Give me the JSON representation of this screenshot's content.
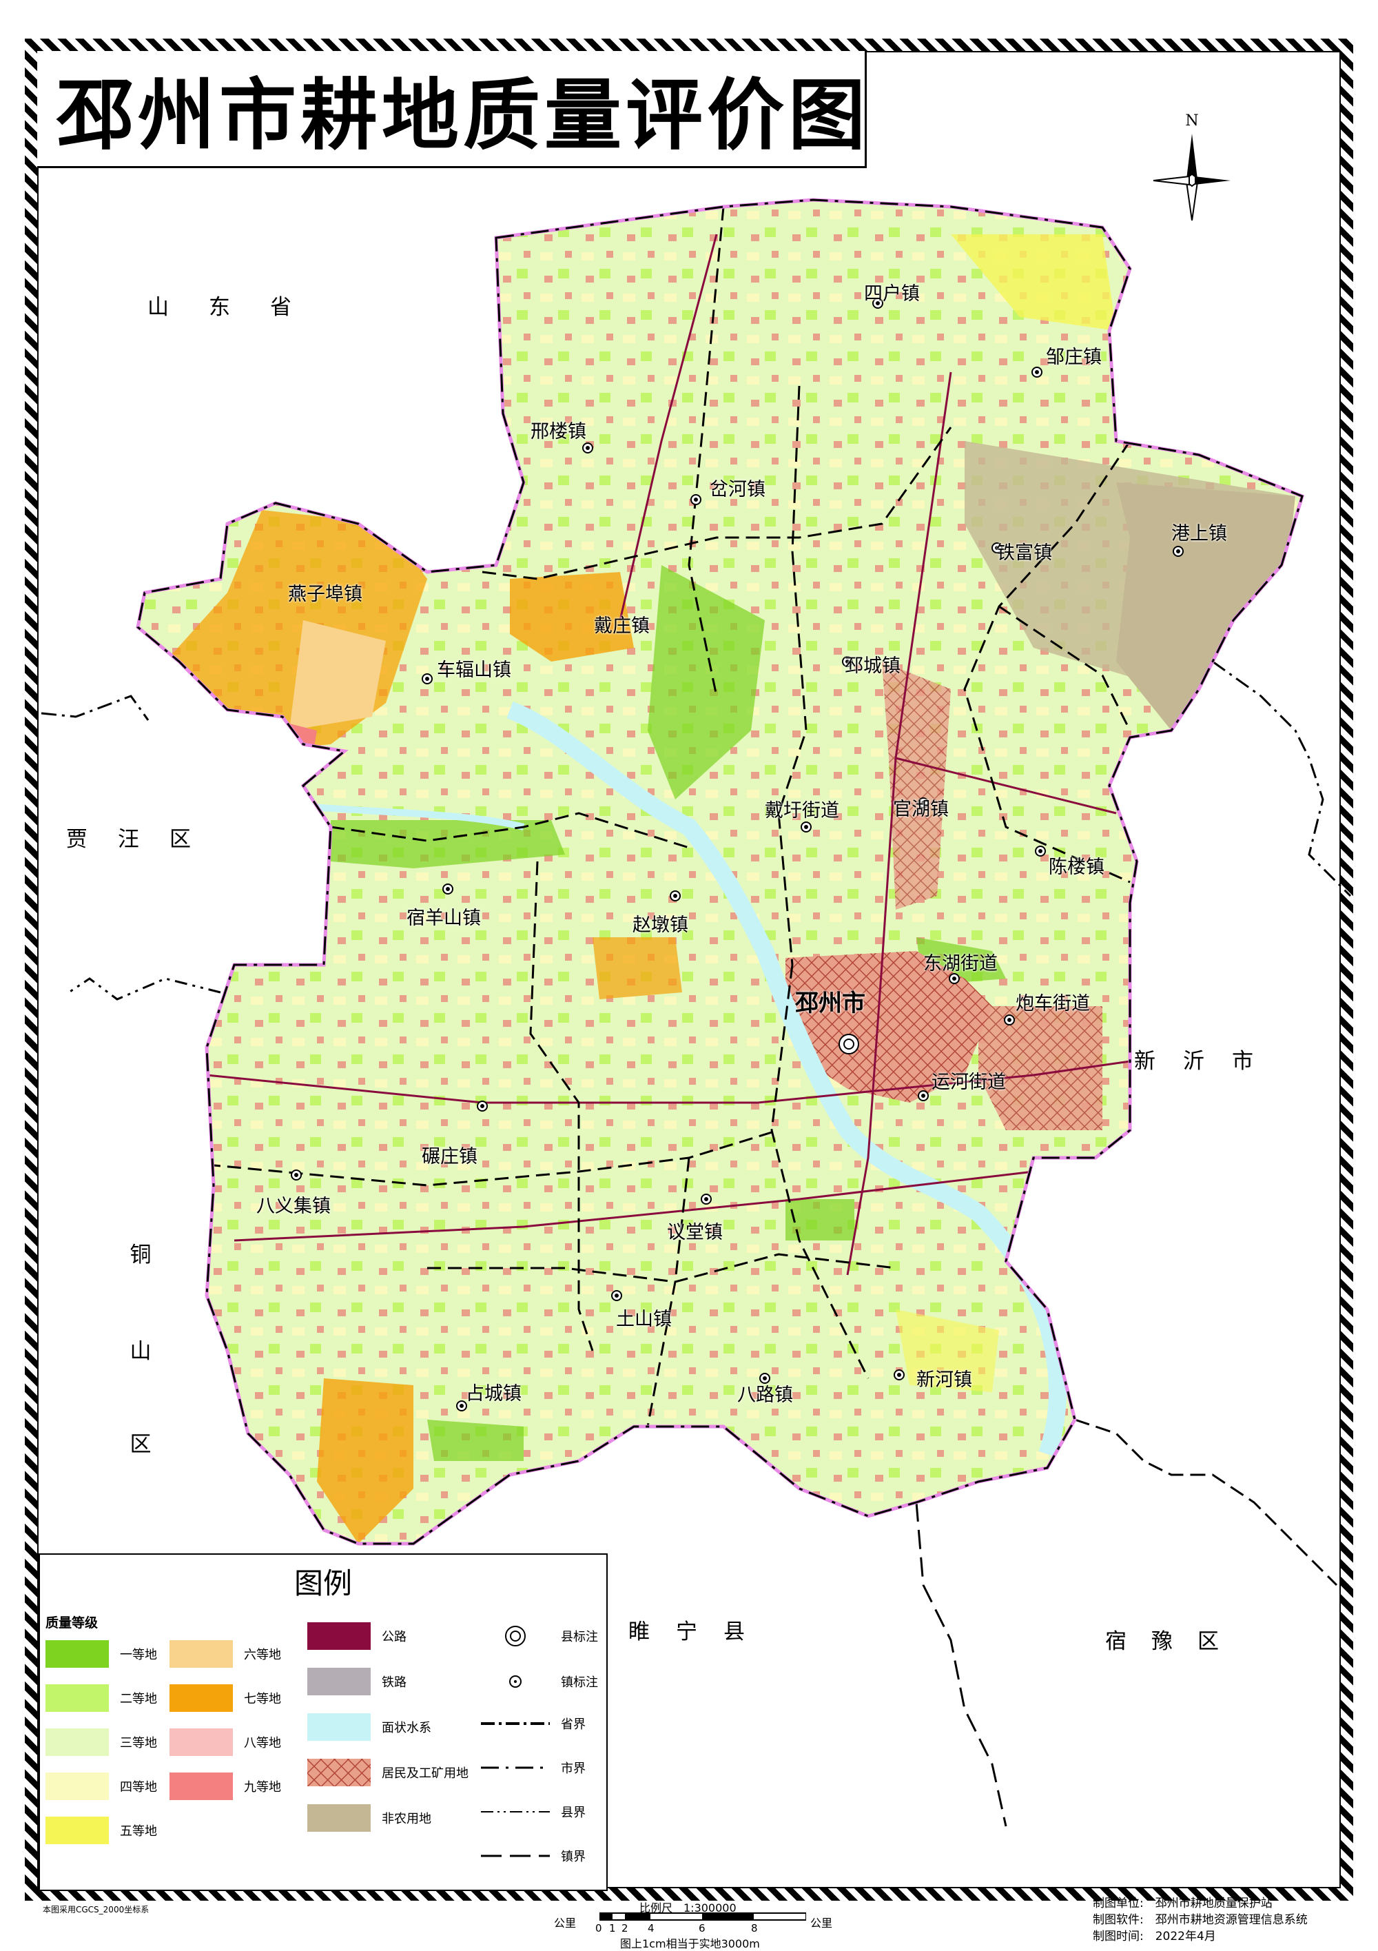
{
  "title": "邳州市耕地质量评价图",
  "north_label": "N",
  "regions": {
    "shandong": "山东省",
    "jiawang": "贾汪区",
    "tongshan": [
      "铜",
      "山",
      "区"
    ],
    "xinyi": "新沂市",
    "suining": "睢宁县",
    "suyu": "宿豫区"
  },
  "city_label": "邳州市",
  "towns": {
    "sihu": "四户镇",
    "zouzhuang": "邹庄镇",
    "xinglou": "邢楼镇",
    "chahe": "岔河镇",
    "gangshang": "港上镇",
    "tiefu": "铁富镇",
    "yanzibu": "燕子埠镇",
    "chefushan": "车辐山镇",
    "daizhuang": "戴庄镇",
    "pichengzhen": "邳城镇",
    "daiyu": "戴圩街道",
    "guanhu": "官湖镇",
    "chenlou": "陈楼镇",
    "suyangshan": "宿羊山镇",
    "zhaodun": "赵墩镇",
    "donghu": "东湖街道",
    "paoche": "炮车街道",
    "yunhe": "运河街道",
    "nianzhuang": "碾庄镇",
    "bayiji": "八义集镇",
    "yitang": "议堂镇",
    "tushan": "土山镇",
    "zhancheng": "占城镇",
    "balu": "八路镇",
    "xinhe": "新河镇"
  },
  "legend": {
    "title": "图例",
    "grade_heading": "质量等级",
    "grades": [
      {
        "label": "一等地",
        "color": "#7ed321"
      },
      {
        "label": "二等地",
        "color": "#c3f56b"
      },
      {
        "label": "三等地",
        "color": "#e5f9bf"
      },
      {
        "label": "四等地",
        "color": "#fafabf"
      },
      {
        "label": "五等地",
        "color": "#f5f556"
      },
      {
        "label": "六等地",
        "color": "#f9d38c"
      },
      {
        "label": "七等地",
        "color": "#f5a30a"
      },
      {
        "label": "八等地",
        "color": "#f9bebe"
      },
      {
        "label": "九等地",
        "color": "#f58080"
      }
    ],
    "landuse": [
      {
        "label": "公路",
        "color": "#8a0c3e"
      },
      {
        "label": "铁路",
        "color": "#b4aeb4"
      },
      {
        "label": "面状水系",
        "color": "#c6f3f6"
      },
      {
        "label": "居民及工矿用地",
        "color": "#e8a08a"
      },
      {
        "label": "非农用地",
        "color": "#c4b894"
      }
    ],
    "symbols": [
      {
        "label": "县标注"
      },
      {
        "label": "镇标注"
      },
      {
        "label": "省界"
      },
      {
        "label": "市界"
      },
      {
        "label": "县界"
      },
      {
        "label": "镇界"
      }
    ]
  },
  "scale": {
    "title": "比例尺　1:300000",
    "unit_left": "公里",
    "unit_right": "公里",
    "ticks": [
      "0",
      "1",
      "2",
      "4",
      "6",
      "8"
    ],
    "note": "图上1cm相当于实地3000m"
  },
  "coord_note": "本图采用CGCS_2000坐标系",
  "credits": {
    "org": "制图单位:　邳州市耕地质量保护站",
    "software": "制图软件:　邳州市耕地资源管理信息系统",
    "date": "制图时间:　2022年4月"
  }
}
